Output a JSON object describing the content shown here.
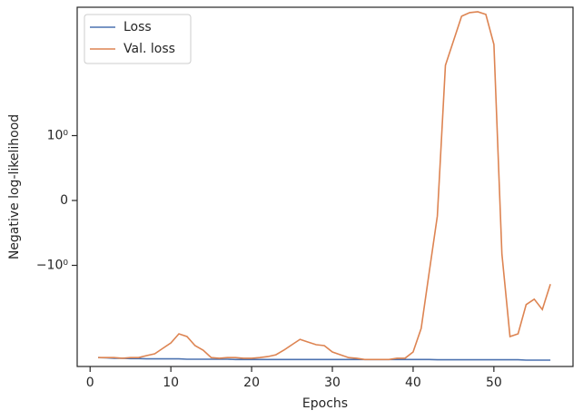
{
  "chart_data": {
    "type": "line",
    "xlabel": "Epochs",
    "ylabel": "Negative log-likelihood",
    "x": [
      1,
      2,
      3,
      4,
      5,
      6,
      7,
      8,
      9,
      10,
      11,
      12,
      13,
      14,
      15,
      16,
      17,
      18,
      19,
      20,
      21,
      22,
      23,
      24,
      25,
      26,
      27,
      28,
      29,
      30,
      31,
      32,
      33,
      34,
      35,
      36,
      37,
      38,
      39,
      40,
      41,
      42,
      43,
      44,
      45,
      46,
      47,
      48,
      49,
      50,
      51,
      52,
      53,
      54,
      55,
      56,
      57
    ],
    "series": [
      {
        "name": "Loss",
        "color": "#4c72b0",
        "values": [
          -38,
          -38.5,
          -39,
          -39,
          -39.5,
          -39.5,
          -40,
          -40,
          -40,
          -40,
          -40,
          -40.5,
          -40.5,
          -40.5,
          -40.5,
          -40.5,
          -40.5,
          -41,
          -41,
          -41,
          -41,
          -41,
          -41,
          -41,
          -41,
          -41,
          -41,
          -41,
          -41,
          -41,
          -41,
          -41,
          -41,
          -41,
          -41,
          -41,
          -41,
          -41,
          -41,
          -41,
          -41,
          -41,
          -41.5,
          -41.5,
          -41.5,
          -41.5,
          -41.5,
          -41.5,
          -41.5,
          -41.5,
          -41.5,
          -41.5,
          -41.5,
          -42,
          -42,
          -42,
          -42
        ]
      },
      {
        "name": "Val. loss",
        "color": "#dd8452",
        "values": [
          -38,
          -38,
          -38,
          -39,
          -38,
          -38,
          -35.2,
          -32.7,
          -26.4,
          -21.3,
          -14.9,
          -16.6,
          -23.7,
          -28.4,
          -38,
          -39,
          -38,
          -38,
          -39,
          -39,
          -38,
          -36.5,
          -34,
          -28.4,
          -22.9,
          -18.5,
          -20.6,
          -22.9,
          -23.7,
          -30.5,
          -34,
          -38,
          -39,
          -41,
          -41,
          -41,
          -41,
          -39,
          -39,
          -30.5,
          -12,
          -1.3,
          -0.24,
          16,
          42,
          111,
          128,
          132,
          119,
          36.5,
          -0.825,
          -16.6,
          -14.9,
          -4.7,
          -3.8,
          -5.7,
          -2.1
        ]
      }
    ],
    "yscale": "symlog",
    "linthresh": 1,
    "xlim": [
      -1.6,
      59.8
    ],
    "xticks": [
      0,
      10,
      20,
      30,
      40,
      50
    ],
    "ylim": [
      -54,
      158
    ],
    "yticks": [
      {
        "value": -1,
        "label": "−10⁰"
      },
      0,
      {
        "value": 1,
        "label": "10⁰"
      }
    ],
    "legend": "upper left"
  }
}
